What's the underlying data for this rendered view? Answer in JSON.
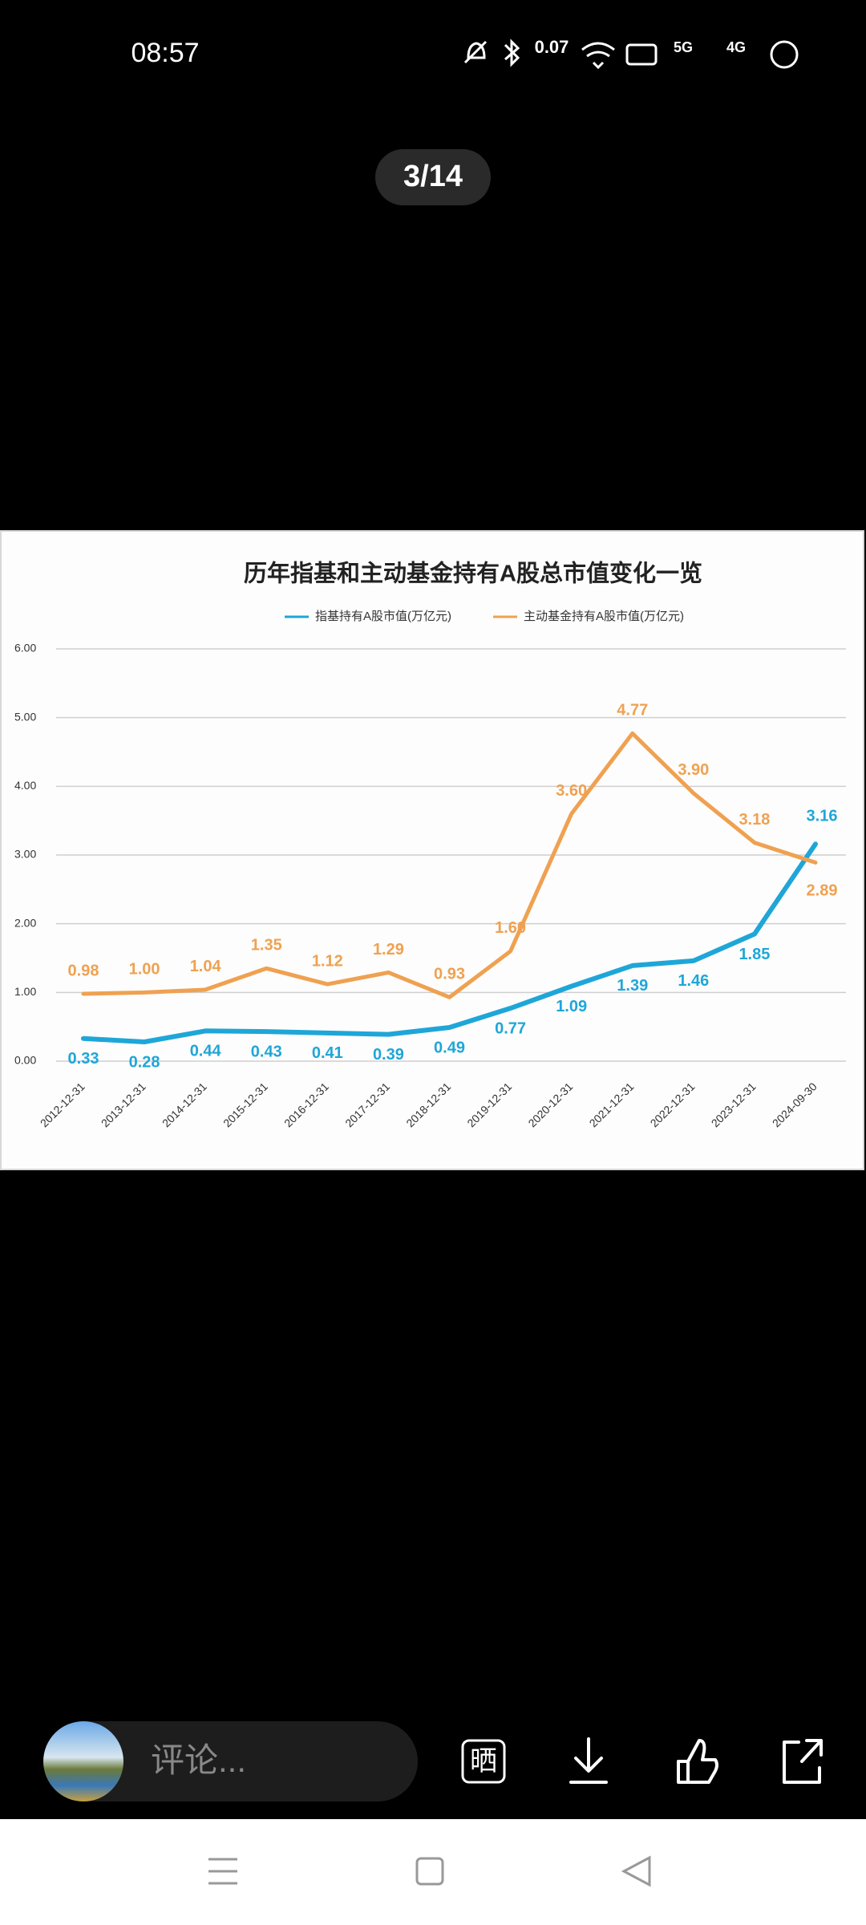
{
  "status": {
    "time": "08:57",
    "speed": "0.07",
    "net1": "5G",
    "net2": "4G"
  },
  "counter": "3/14",
  "chart_data": {
    "type": "line",
    "title": "历年指基和主动基金持有A股总市值变化一览",
    "categories": [
      "2012-12-31",
      "2013-12-31",
      "2014-12-31",
      "2015-12-31",
      "2016-12-31",
      "2017-12-31",
      "2018-12-31",
      "2019-12-31",
      "2020-12-31",
      "2021-12-31",
      "2022-12-31",
      "2023-12-31",
      "2024-09-30"
    ],
    "series": [
      {
        "name": "指基持有A股市值(万亿元)",
        "color": "#1fa6d8",
        "values": [
          0.33,
          0.28,
          0.44,
          0.43,
          0.41,
          0.39,
          0.49,
          0.77,
          1.09,
          1.39,
          1.46,
          1.85,
          3.16
        ],
        "value_labels": [
          "0.33",
          "0.28",
          "0.44",
          "0.43",
          "0.41",
          "0.39",
          "0.49",
          "0.77",
          "1.09",
          "1.39",
          "1.46",
          "1.85",
          "3.16"
        ]
      },
      {
        "name": "主动基金持有A股市值(万亿元)",
        "color": "#efa151",
        "values": [
          0.98,
          1.0,
          1.04,
          1.35,
          1.12,
          1.29,
          0.93,
          1.6,
          3.6,
          4.77,
          3.9,
          3.18,
          2.89
        ],
        "value_labels": [
          "0.98",
          "1.00",
          "1.04",
          "1.35",
          "1.12",
          "1.29",
          "0.93",
          "1.60",
          "3.60",
          "4.77",
          "3.90",
          "3.18",
          "2.89"
        ]
      }
    ],
    "ylim": [
      0,
      6
    ],
    "yticks": [
      {
        "value": 0,
        "label": "0.00"
      },
      {
        "value": 1,
        "label": "1.00"
      },
      {
        "value": 2,
        "label": "2.00"
      },
      {
        "value": 3,
        "label": "3.00"
      },
      {
        "value": 4,
        "label": "4.00"
      },
      {
        "value": 5,
        "label": "5.00"
      },
      {
        "value": 6,
        "label": "6.00"
      }
    ],
    "grid": true
  },
  "bottom": {
    "comment": "评论...",
    "share": "晒"
  }
}
